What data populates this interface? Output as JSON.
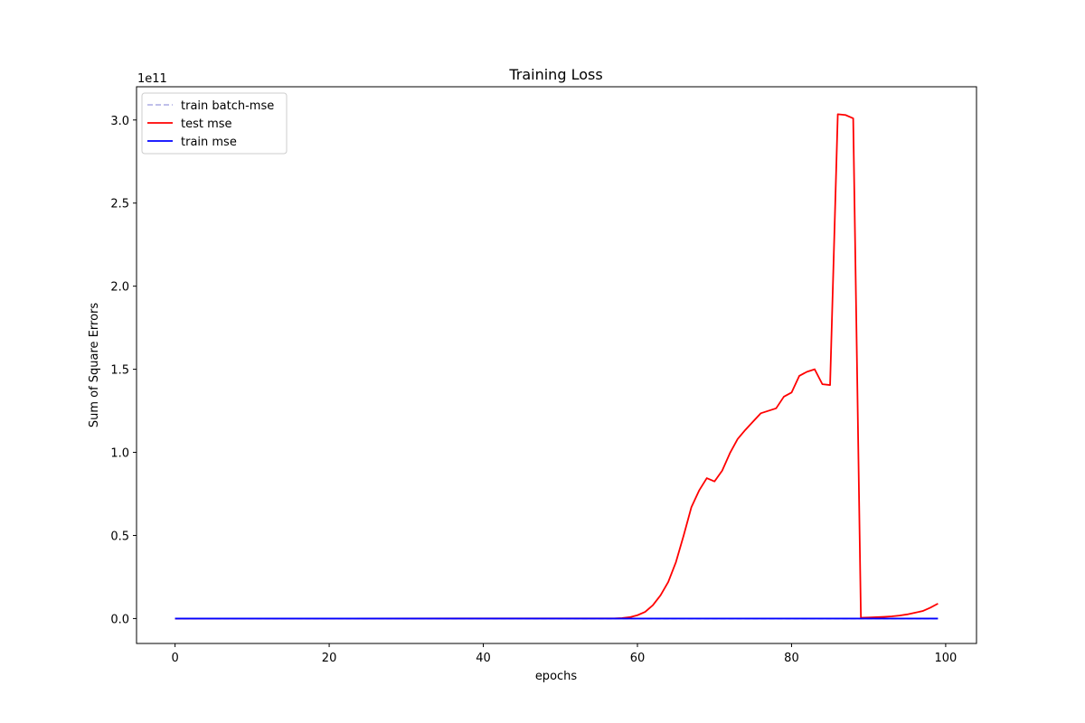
{
  "chart_data": {
    "type": "line",
    "title": "Training Loss",
    "xlabel": "epochs",
    "ylabel": "Sum of Square Errors",
    "y_offset_text": "1e11",
    "y_scale_factor": 100000000000,
    "xlim": [
      -5,
      104
    ],
    "ylim": [
      -0.15,
      3.2
    ],
    "xticks": [
      0,
      20,
      40,
      60,
      80,
      100
    ],
    "xtick_labels": [
      "0",
      "20",
      "40",
      "60",
      "80",
      "100"
    ],
    "yticks": [
      0.0,
      0.5,
      1.0,
      1.5,
      2.0,
      2.5,
      3.0
    ],
    "ytick_labels": [
      "0.0",
      "0.5",
      "1.0",
      "1.5",
      "2.0",
      "2.5",
      "3.0"
    ],
    "grid": false,
    "legend_placement": "top-left",
    "series": [
      {
        "name": "train batch-mse",
        "color": "#b8b8e8",
        "style": "dashed",
        "x": [
          0,
          99
        ],
        "y": [
          0.0,
          0.0
        ]
      },
      {
        "name": "test mse",
        "color": "#ff0000",
        "style": "solid",
        "x": [
          0,
          57,
          58,
          59,
          60,
          61,
          62,
          63,
          64,
          65,
          66,
          67,
          68,
          69,
          70,
          71,
          72,
          73,
          74,
          75,
          76,
          77,
          78,
          79,
          80,
          81,
          82,
          83,
          84,
          85,
          86,
          87,
          88,
          89,
          90,
          91,
          92,
          93,
          94,
          95,
          96,
          97,
          98,
          99
        ],
        "y": [
          0.0,
          0.001,
          0.003,
          0.008,
          0.02,
          0.04,
          0.08,
          0.14,
          0.22,
          0.34,
          0.5,
          0.67,
          0.77,
          0.845,
          0.825,
          0.89,
          0.995,
          1.08,
          1.135,
          1.185,
          1.235,
          1.25,
          1.265,
          1.335,
          1.36,
          1.46,
          1.485,
          1.5,
          1.41,
          1.405,
          3.035,
          3.03,
          3.01,
          0.005,
          0.006,
          0.008,
          0.01,
          0.013,
          0.018,
          0.025,
          0.035,
          0.045,
          0.065,
          0.09
        ]
      },
      {
        "name": "train mse",
        "color": "#0000ff",
        "style": "solid",
        "x": [
          0,
          99
        ],
        "y": [
          0.0,
          0.0
        ]
      }
    ]
  }
}
